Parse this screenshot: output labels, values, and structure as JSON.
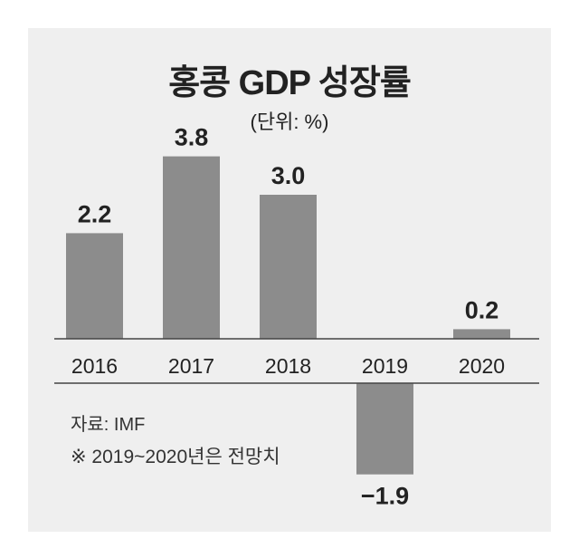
{
  "chart_data": {
    "type": "bar",
    "title": "홍콩 GDP 성장률",
    "unit_label": "(단위: %)",
    "categories": [
      "2016",
      "2017",
      "2018",
      "2019",
      "2020"
    ],
    "values": [
      2.2,
      3.8,
      3.0,
      -1.9,
      0.2
    ],
    "value_labels": [
      "2.2",
      "3.8",
      "3.0",
      "−1.9",
      "0.2"
    ],
    "bar_color": "#8c8c8c",
    "grid": false,
    "legend": "none"
  },
  "notes": {
    "source": "자료: IMF",
    "footnote": "※ 2019~2020년은 전망치"
  },
  "colors": {
    "panel_background": "#efefef",
    "bar": "#8c8c8c",
    "axis": "#444444",
    "text": "#222222"
  }
}
